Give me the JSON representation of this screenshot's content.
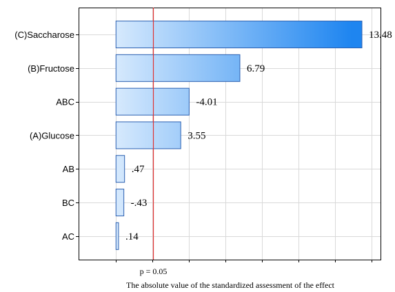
{
  "chart_data": {
    "type": "bar",
    "orientation": "horizontal",
    "categories": [
      "(C)Saccharose",
      "(B)Fructose",
      "ABC",
      "(A)Glucose",
      "AB",
      "BC",
      "AC"
    ],
    "values": [
      13.48,
      6.79,
      -4.01,
      3.55,
      0.47,
      -0.43,
      0.14
    ],
    "value_labels": [
      "13.48",
      "6.79",
      "-4.01",
      "3.55",
      ".47",
      "-.43",
      ".14"
    ],
    "xlim": [
      -2.05,
      14.5
    ],
    "reference_line": {
      "value": 2.05,
      "label": "p = 0.05",
      "color": "#e03030"
    },
    "xlabel": "The absolute value of the standardized assessment of the effect",
    "ylabel": "",
    "title": "",
    "grid": true,
    "colors": {
      "bar_light": "#eef6ff",
      "bar_dark": "#1e85f0",
      "bar_border": "#2a5fb0",
      "grid": "#d9d9d9"
    }
  }
}
